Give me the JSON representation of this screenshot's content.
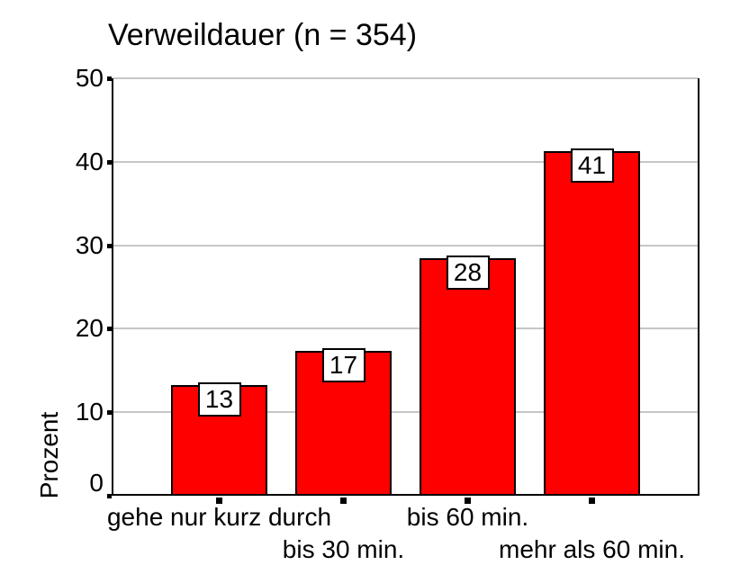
{
  "chart_data": {
    "type": "bar",
    "title": "Verweildauer (n = 354)",
    "ylabel": "Prozent",
    "xlabel": "",
    "categories": [
      "gehe nur kurz durch",
      "bis 30 min.",
      "bis 60 min.",
      "mehr als 60 min."
    ],
    "values": [
      13,
      17,
      28,
      41
    ],
    "values_precise": [
      13.3,
      17.3,
      28.4,
      41.3
    ],
    "ylim": [
      0,
      50
    ],
    "yticks": [
      0,
      10,
      20,
      30,
      40,
      50
    ],
    "grid": "horizontal",
    "legend": "none",
    "bar_color": "#ff0000",
    "bar_border_color": "#000000",
    "gridline_color": "#c6c6c6",
    "axis_color": "#000000",
    "value_label_box": {
      "background": "#ffffff",
      "border": "#000000"
    },
    "background_color": "#ffffff"
  }
}
